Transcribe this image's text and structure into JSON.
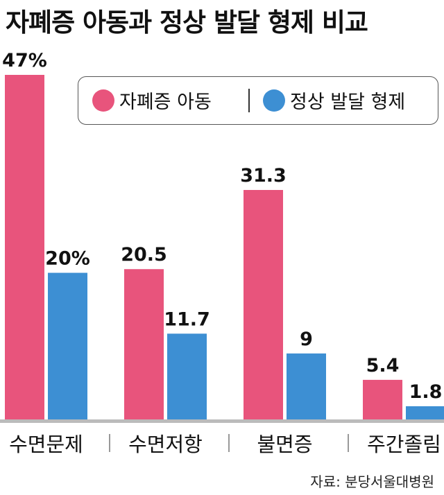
{
  "title": "자폐증 아동과 정상 발달 형제 비교",
  "legend": {
    "autism_label": "자폐증 아동",
    "normal_label": "정상 발달 형제"
  },
  "source": "자료: 분당서울대병원",
  "colors": {
    "autism": "#e8547c",
    "normal": "#3d8fd3",
    "baseline": "#bbbbbb",
    "separator": "#777777",
    "text": "#111111"
  },
  "chart_data": {
    "type": "bar",
    "categories": [
      "수면문제",
      "수면저항",
      "불면증",
      "주간졸림"
    ],
    "series": [
      {
        "name": "자폐증 아동",
        "values": [
          47,
          20.5,
          31.3,
          5.4
        ],
        "labels": [
          "47%",
          "20.5",
          "31.3",
          "5.4"
        ]
      },
      {
        "name": "정상 발달 형제",
        "values": [
          20,
          11.7,
          9,
          1.8
        ],
        "labels": [
          "20%",
          "11.7",
          "9",
          "1.8"
        ]
      }
    ],
    "ylim": [
      0,
      47
    ],
    "grid": false,
    "legend_position": "top-right"
  }
}
